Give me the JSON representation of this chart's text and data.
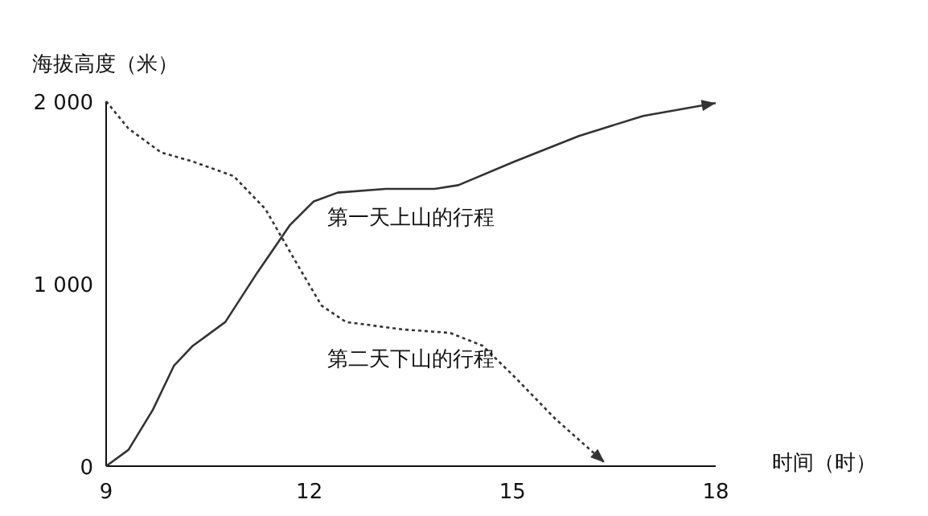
{
  "chart_data": {
    "type": "line",
    "xlabel": "时间（时）",
    "ylabel": "海拔高度（米）",
    "xlim": [
      9,
      18
    ],
    "ylim": [
      0,
      2000
    ],
    "xticks": [
      9,
      12,
      15,
      18
    ],
    "yticks": [
      {
        "value": 0,
        "label": "0"
      },
      {
        "value": 1000,
        "label": "1 000"
      },
      {
        "value": 2000,
        "label": "2 000"
      }
    ],
    "grid": false,
    "series": [
      {
        "name": "第一天上山的行程",
        "color": "#333333",
        "line_style": "solid",
        "x": [
          9,
          9.33,
          9.69,
          10,
          10.28,
          10.76,
          11.23,
          11.71,
          12.06,
          12.42,
          13.13,
          13.85,
          14.2,
          15.03,
          15.98,
          16.93,
          18
        ],
        "values": [
          0,
          90,
          310,
          550,
          660,
          790,
          1060,
          1320,
          1450,
          1500,
          1520,
          1520,
          1540,
          1670,
          1810,
          1920,
          1990
        ]
      },
      {
        "name": "第二天下山的行程",
        "color": "#333333",
        "line_style": "dotted",
        "x": [
          9,
          9.33,
          9.81,
          10.28,
          10.88,
          11.35,
          11.83,
          12.18,
          12.54,
          13.37,
          14.08,
          14.56,
          15.03,
          15.63,
          16.36
        ],
        "values": [
          2000,
          1850,
          1720,
          1670,
          1590,
          1410,
          1100,
          880,
          790,
          750,
          730,
          660,
          490,
          260,
          20
        ]
      }
    ]
  }
}
